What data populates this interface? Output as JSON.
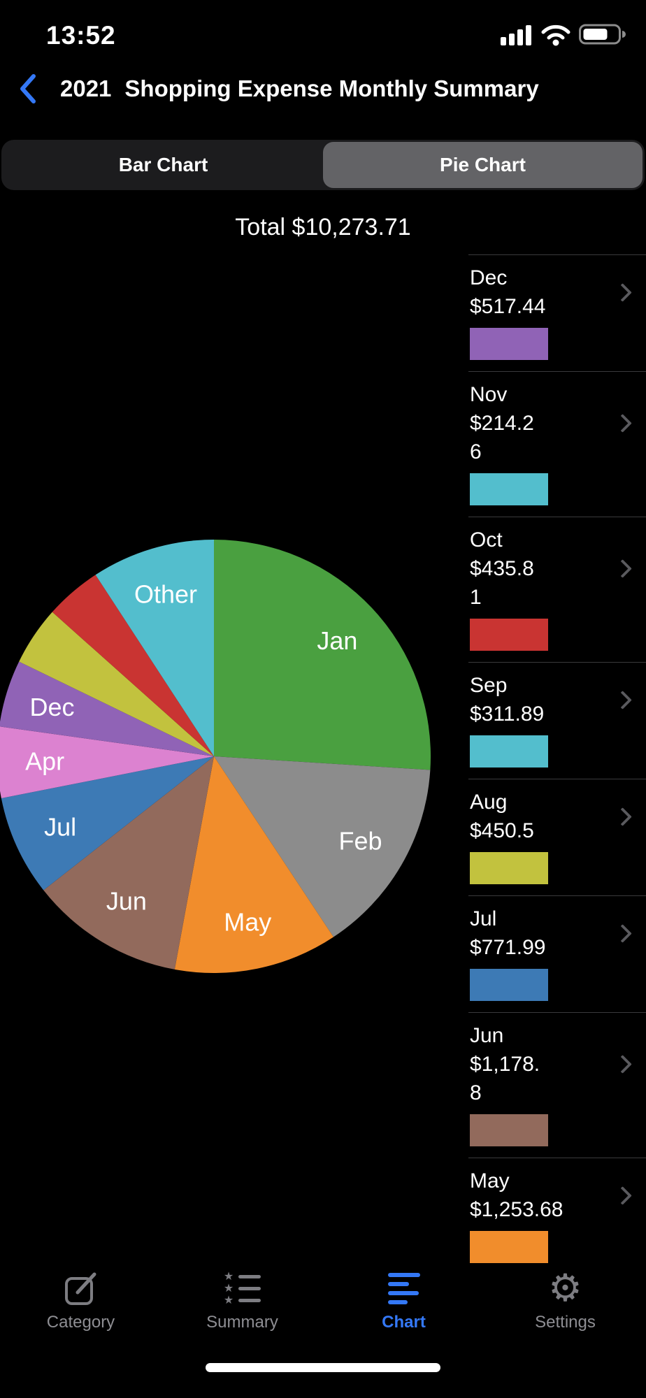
{
  "status_bar": {
    "time": "13:52"
  },
  "nav": {
    "year": "2021",
    "title": "Shopping Expense Monthly Summary"
  },
  "segmented": {
    "options": [
      {
        "label": "Bar Chart",
        "selected": false
      },
      {
        "label": "Pie Chart",
        "selected": true
      }
    ]
  },
  "total_label": "Total $10,273.71",
  "chart_data": {
    "type": "pie",
    "title": "2021 Shopping Expense Monthly Summary",
    "total": "$10,273.71",
    "legend_position": "right-list",
    "slices": [
      {
        "label": "Jan",
        "percent": 26.0,
        "color": "#4AA040",
        "label_visible": true,
        "estimated": true
      },
      {
        "label": "Feb",
        "percent": 14.7,
        "color": "#8C8C8C",
        "label_visible": true,
        "estimated": true
      },
      {
        "label": "May",
        "percent": 12.2,
        "color": "#F18D2C",
        "label_visible": true,
        "value": "$1,253.68"
      },
      {
        "label": "Jun",
        "percent": 11.5,
        "color": "#926A5C",
        "label_visible": true,
        "value": "$1,178.8"
      },
      {
        "label": "Jul",
        "percent": 7.5,
        "color": "#3D7AB5",
        "label_visible": true,
        "value": "$771.99"
      },
      {
        "label": "Apr",
        "percent": 5.3,
        "color": "#DC82D0",
        "label_visible": true,
        "estimated": true
      },
      {
        "label": "Dec",
        "percent": 5.0,
        "color": "#9063B6",
        "label_visible": true,
        "value": "$517.44"
      },
      {
        "label": "Aug",
        "percent": 4.4,
        "color": "#C2C23E",
        "label_visible": false,
        "value": "$450.5"
      },
      {
        "label": "Oct",
        "percent": 4.2,
        "color": "#C93432",
        "label_visible": false,
        "value": "$435.81"
      },
      {
        "label": "Other",
        "percent": 9.2,
        "color": "#53BECD",
        "label_visible": true,
        "estimated": true
      }
    ]
  },
  "list": {
    "rows": [
      {
        "month": "Dec",
        "value_lines": [
          "$517.44"
        ],
        "color": "#9063B6"
      },
      {
        "month": "Nov",
        "value_lines": [
          "$214.2",
          "6"
        ],
        "color": "#53BECD"
      },
      {
        "month": "Oct",
        "value_lines": [
          "$435.8",
          "1"
        ],
        "color": "#C93432"
      },
      {
        "month": "Sep",
        "value_lines": [
          "$311.89"
        ],
        "color": "#53BECD"
      },
      {
        "month": "Aug",
        "value_lines": [
          "$450.5"
        ],
        "color": "#C2C23E"
      },
      {
        "month": "Jul",
        "value_lines": [
          "$771.99"
        ],
        "color": "#3D7AB5"
      },
      {
        "month": "Jun",
        "value_lines": [
          "$1,178.",
          "8"
        ],
        "color": "#926A5C"
      },
      {
        "month": "May",
        "value_lines": [
          "$1,253.68"
        ],
        "color": "#F18D2C"
      }
    ]
  },
  "tab_bar": {
    "active_color": "#3478F6",
    "inactive_color": "#8E8E93",
    "items": [
      {
        "label": "Category",
        "icon": "compose-icon",
        "active": false
      },
      {
        "label": "Summary",
        "icon": "summary-list-icon",
        "active": false
      },
      {
        "label": "Chart",
        "icon": "chart-lines-icon",
        "active": true
      },
      {
        "label": "Settings",
        "icon": "gear-icon",
        "active": false
      }
    ]
  }
}
